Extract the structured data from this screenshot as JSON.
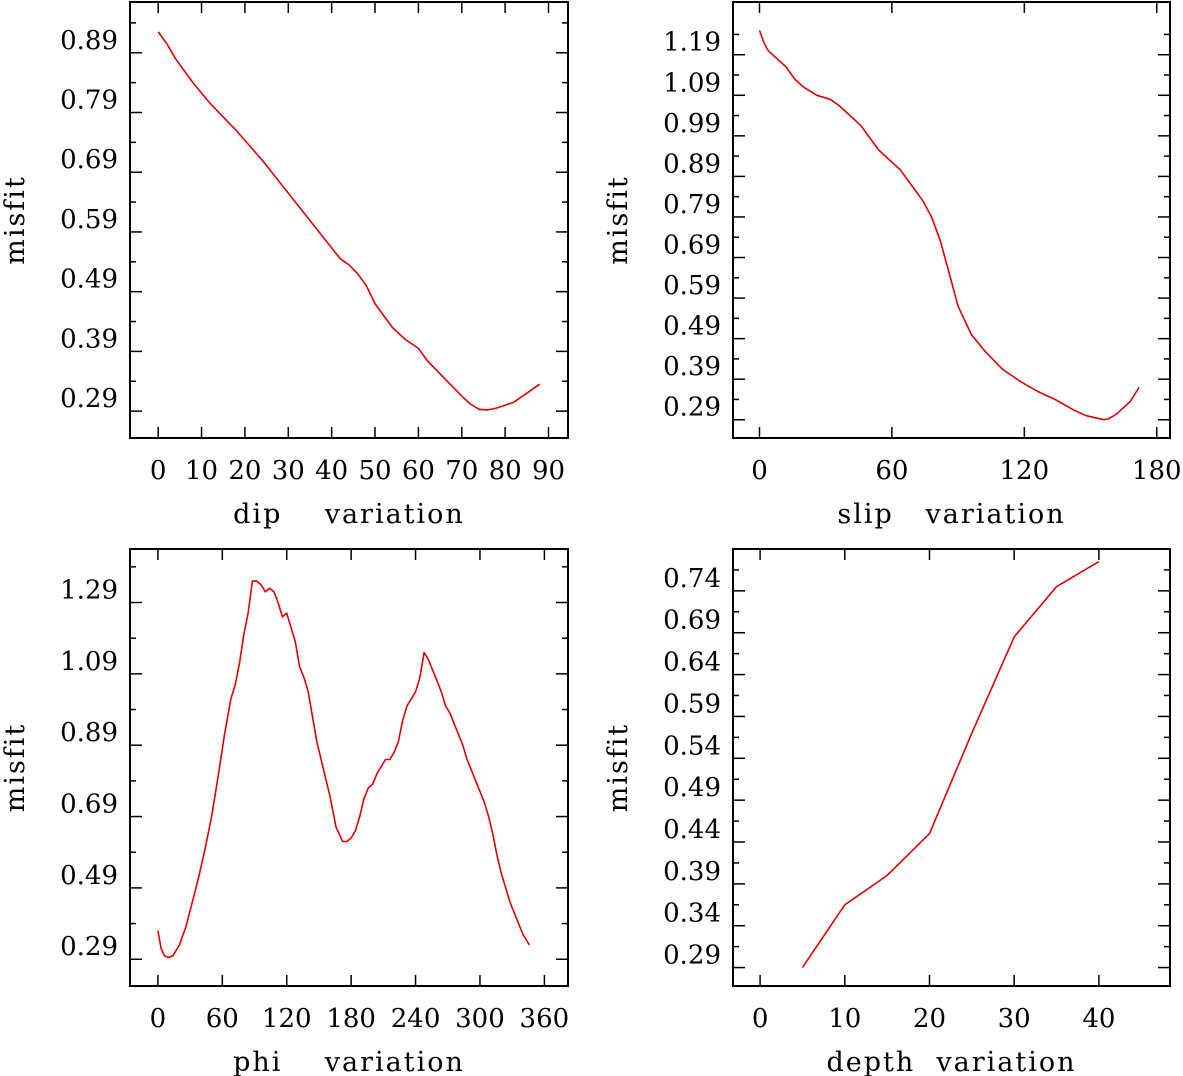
{
  "colors": {
    "line": "#e00000",
    "axes": "#000000",
    "background": "#ffffff"
  },
  "chart_data": [
    {
      "type": "line",
      "xlabel": "dip    variation",
      "ylabel": "misfit",
      "xlim": [
        -6.5,
        94.5
      ],
      "ylim": [
        0.245,
        0.975
      ],
      "xticks": [
        0,
        10,
        20,
        30,
        40,
        50,
        60,
        70,
        80,
        90
      ],
      "xtick_labels": [
        "0",
        "10",
        "20",
        "30",
        "40",
        "50",
        "60",
        "70",
        "80",
        "90"
      ],
      "yticks": [
        0.29,
        0.39,
        0.49,
        0.59,
        0.69,
        0.79,
        0.89
      ],
      "ytick_labels": [
        "0.29",
        "0.39",
        "0.49",
        "0.59",
        "0.69",
        "0.79",
        "0.89"
      ],
      "x": [
        0,
        2,
        4,
        8,
        12,
        18,
        24,
        30,
        36,
        42,
        44,
        46,
        48,
        50,
        52,
        54,
        57,
        60,
        62,
        64,
        66,
        68,
        70,
        72,
        74,
        76,
        78,
        80,
        82,
        84,
        86,
        88
      ],
      "y": [
        0.925,
        0.905,
        0.88,
        0.84,
        0.805,
        0.76,
        0.71,
        0.655,
        0.6,
        0.545,
        0.535,
        0.52,
        0.5,
        0.47,
        0.45,
        0.43,
        0.41,
        0.395,
        0.375,
        0.36,
        0.345,
        0.33,
        0.315,
        0.302,
        0.293,
        0.292,
        0.295,
        0.3,
        0.305,
        0.315,
        0.325,
        0.335
      ]
    },
    {
      "type": "line",
      "xlabel": "slip   variation",
      "ylabel": "misfit",
      "xlim": [
        -12,
        186
      ],
      "ylim": [
        0.245,
        1.32
      ],
      "xticks": [
        0,
        60,
        120,
        180
      ],
      "xtick_labels": [
        "0",
        "60",
        "120",
        "180"
      ],
      "yticks": [
        0.29,
        0.39,
        0.49,
        0.59,
        0.69,
        0.79,
        0.89,
        0.99,
        1.09,
        1.19
      ],
      "ytick_labels": [
        "0.29",
        "0.39",
        "0.49",
        "0.59",
        "0.69",
        "0.79",
        "0.89",
        "0.99",
        "1.09",
        "1.19"
      ],
      "x": [
        0,
        2,
        4,
        8,
        12,
        16,
        20,
        26,
        32,
        36,
        40,
        46,
        50,
        54,
        58,
        64,
        70,
        74,
        78,
        82,
        86,
        90,
        96,
        102,
        110,
        118,
        126,
        134,
        142,
        148,
        152,
        156,
        158,
        160,
        162,
        164,
        168,
        172
      ],
      "y": [
        1.25,
        1.22,
        1.2,
        1.18,
        1.16,
        1.13,
        1.11,
        1.09,
        1.08,
        1.065,
        1.045,
        1.015,
        0.985,
        0.955,
        0.935,
        0.905,
        0.86,
        0.83,
        0.79,
        0.73,
        0.65,
        0.57,
        0.5,
        0.46,
        0.415,
        0.385,
        0.36,
        0.34,
        0.315,
        0.3,
        0.295,
        0.29,
        0.292,
        0.298,
        0.305,
        0.315,
        0.335,
        0.37
      ]
    },
    {
      "type": "line",
      "xlabel": "phi    variation",
      "ylabel": "misfit",
      "xlim": [
        -26,
        382
      ],
      "ylim": [
        0.215,
        1.44
      ],
      "xticks": [
        0,
        60,
        120,
        180,
        240,
        300,
        360
      ],
      "xtick_labels": [
        "0",
        "60",
        "120",
        "180",
        "240",
        "300",
        "360"
      ],
      "yticks": [
        0.29,
        0.49,
        0.69,
        0.89,
        1.09,
        1.29
      ],
      "ytick_labels": [
        "0.29",
        "0.49",
        "0.69",
        "0.89",
        "1.09",
        "1.29"
      ],
      "x": [
        0,
        3,
        6,
        10,
        14,
        20,
        26,
        32,
        38,
        44,
        50,
        56,
        62,
        68,
        72,
        76,
        80,
        84,
        88,
        92,
        96,
        100,
        104,
        108,
        112,
        116,
        120,
        124,
        128,
        132,
        136,
        140,
        144,
        148,
        152,
        156,
        160,
        166,
        172,
        176,
        180,
        184,
        188,
        192,
        196,
        200,
        204,
        208,
        212,
        216,
        220,
        224,
        228,
        232,
        236,
        240,
        244,
        248,
        252,
        256,
        260,
        264,
        268,
        272,
        276,
        280,
        284,
        288,
        292,
        296,
        300,
        304,
        308,
        312,
        316,
        320,
        324,
        328,
        332,
        336,
        340,
        346
      ],
      "y": [
        0.37,
        0.32,
        0.3,
        0.295,
        0.3,
        0.33,
        0.38,
        0.45,
        0.52,
        0.6,
        0.69,
        0.8,
        0.92,
        1.02,
        1.06,
        1.12,
        1.2,
        1.26,
        1.35,
        1.35,
        1.34,
        1.32,
        1.33,
        1.32,
        1.29,
        1.25,
        1.26,
        1.22,
        1.18,
        1.11,
        1.08,
        1.04,
        0.97,
        0.9,
        0.85,
        0.8,
        0.75,
        0.66,
        0.62,
        0.62,
        0.63,
        0.65,
        0.69,
        0.74,
        0.77,
        0.78,
        0.81,
        0.83,
        0.85,
        0.85,
        0.87,
        0.9,
        0.96,
        1.0,
        1.02,
        1.04,
        1.08,
        1.15,
        1.13,
        1.1,
        1.07,
        1.04,
        1.0,
        0.98,
        0.95,
        0.92,
        0.89,
        0.85,
        0.82,
        0.79,
        0.76,
        0.73,
        0.69,
        0.64,
        0.58,
        0.53,
        0.49,
        0.45,
        0.42,
        0.39,
        0.36,
        0.33
      ]
    },
    {
      "type": "line",
      "xlabel": "depth  variation",
      "ylabel": "misfit",
      "xlim": [
        -3.2,
        48.4
      ],
      "ylim": [
        0.268,
        0.79
      ],
      "xticks": [
        0,
        10,
        20,
        30,
        40
      ],
      "xtick_labels": [
        "0",
        "10",
        "20",
        "30",
        "40"
      ],
      "yticks": [
        0.29,
        0.34,
        0.39,
        0.44,
        0.49,
        0.54,
        0.59,
        0.64,
        0.69,
        0.74
      ],
      "ytick_labels": [
        "0.29",
        "0.34",
        "0.39",
        "0.44",
        "0.49",
        "0.54",
        "0.59",
        "0.64",
        "0.69",
        "0.74"
      ],
      "x": [
        5,
        10,
        15,
        20,
        25,
        30,
        35,
        40
      ],
      "y": [
        0.29,
        0.365,
        0.4,
        0.45,
        0.57,
        0.685,
        0.745,
        0.775
      ]
    }
  ]
}
